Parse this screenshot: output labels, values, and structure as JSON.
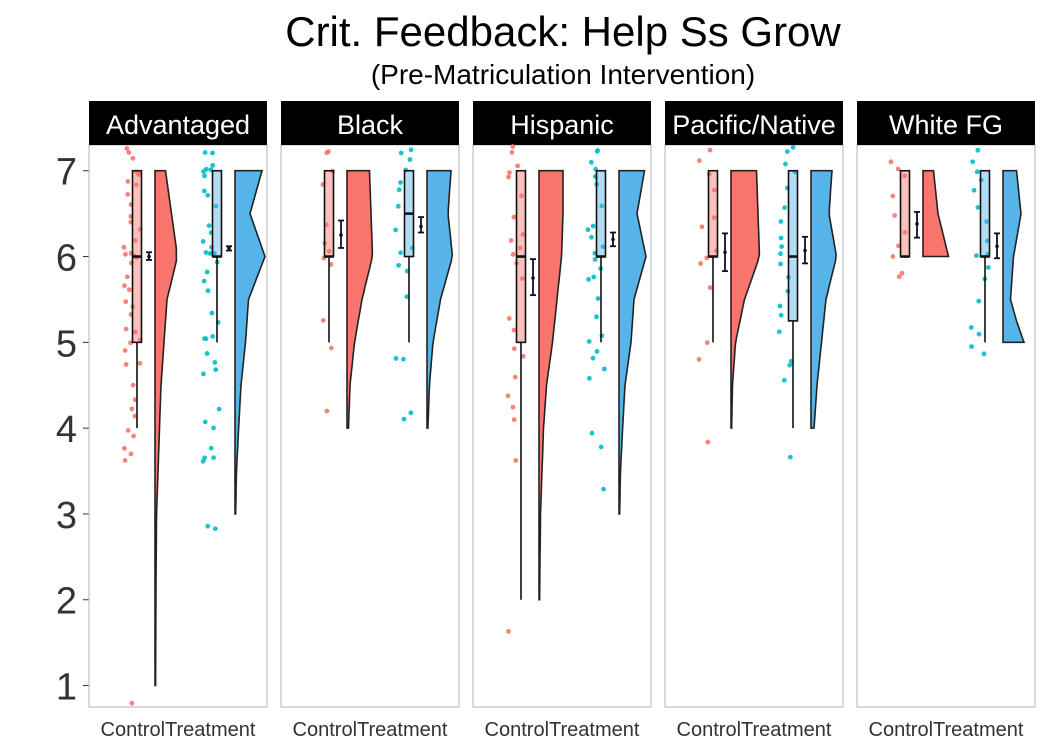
{
  "chart_data": {
    "type": "raincloud",
    "title": "Crit. Feedback: Help Ss Grow",
    "subtitle": "(Pre-Matriculation Intervention)",
    "xlabel": "",
    "ylabel": "",
    "ylim": [
      0.75,
      7.3
    ],
    "yticks": [
      1,
      2,
      3,
      4,
      5,
      6,
      7
    ],
    "categories": [
      "Control",
      "Treatment"
    ],
    "colors": {
      "control_point": "#F8766D",
      "treatment_point": "#00BFC4",
      "control_violin": "#F8766D",
      "treatment_violin": "#56B4E9",
      "strip_bg": "#000000",
      "strip_text": "#FFFFFF",
      "panel_border": "#B3B3B3"
    },
    "panels": [
      {
        "name": "Advantaged",
        "groups": [
          {
            "group": "Control",
            "box": {
              "min": 4,
              "q1": 5,
              "median": 6,
              "q3": 7,
              "max": 7
            },
            "mean": 6.0,
            "ci": [
              5.96,
              6.05
            ],
            "violin": {
              "min": 1,
              "max": 7,
              "density": [
                [
                  1,
                  0.02
                ],
                [
                  2,
                  0.03
                ],
                [
                  3,
                  0.05
                ],
                [
                  4,
                  0.15
                ],
                [
                  4.5,
                  0.2
                ],
                [
                  5,
                  0.3
                ],
                [
                  5.5,
                  0.4
                ],
                [
                  6,
                  0.75
                ],
                [
                  6.5,
                  0.55
                ],
                [
                  7,
                  0.35
                ]
              ]
            },
            "points": [
              0.8,
              3.6,
              3.7,
              3.8,
              3.9,
              4,
              4.1,
              4.2,
              4.3,
              4.5,
              4.7,
              4.8,
              4.9,
              5,
              5,
              5.1,
              5.2,
              5.3,
              5.4,
              5.5,
              5.6,
              5.7,
              5.8,
              5.9,
              6,
              6,
              6,
              6,
              6.1,
              6.2,
              6.3,
              6.4,
              6.5,
              6.6,
              6.7,
              6.8,
              6.9,
              7,
              7,
              7,
              7.1,
              7.2,
              7.25
            ]
          },
          {
            "group": "Treatment",
            "box": {
              "min": 5,
              "q1": 6,
              "median": 6,
              "q3": 7,
              "max": 7
            },
            "mean": 6.1,
            "ci": [
              6.07,
              6.12
            ],
            "violin": {
              "min": 3,
              "max": 7,
              "density": [
                [
                  3,
                  0.02
                ],
                [
                  3.5,
                  0.05
                ],
                [
                  4,
                  0.12
                ],
                [
                  4.5,
                  0.2
                ],
                [
                  5,
                  0.35
                ],
                [
                  5.5,
                  0.45
                ],
                [
                  6,
                  1.0
                ],
                [
                  6.5,
                  0.5
                ],
                [
                  7,
                  0.9
                ]
              ]
            },
            "points": [
              2.85,
              2.9,
              3.6,
              3.65,
              3.7,
              3.8,
              4,
              4.1,
              4.2,
              4.6,
              4.7,
              4.8,
              4.9,
              5,
              5,
              5.1,
              5.2,
              5.3,
              5.6,
              5.7,
              5.8,
              5.9,
              6,
              6,
              6,
              6.1,
              6.2,
              6.3,
              6.4,
              6.6,
              6.7,
              6.8,
              6.9,
              7,
              7,
              7,
              7.1,
              7.2,
              7.25
            ]
          }
        ]
      },
      {
        "name": "Black",
        "groups": [
          {
            "group": "Control",
            "box": {
              "min": 5,
              "q1": 6,
              "median": 6,
              "q3": 7,
              "max": 7
            },
            "mean": 6.25,
            "ci": [
              6.1,
              6.42
            ],
            "violin": {
              "min": 4,
              "max": 7,
              "density": [
                [
                  4,
                  0.05
                ],
                [
                  4.5,
                  0.1
                ],
                [
                  5,
                  0.25
                ],
                [
                  5.5,
                  0.5
                ],
                [
                  6,
                  0.85
                ],
                [
                  6.5,
                  0.8
                ],
                [
                  7,
                  0.75
                ]
              ]
            },
            "points": [
              4.2,
              4.95,
              5.3,
              5.9,
              6,
              6.1,
              6.2,
              6.4,
              6.8,
              7,
              7.2,
              7.25
            ]
          },
          {
            "group": "Treatment",
            "box": {
              "min": 5,
              "q1": 6,
              "median": 6.5,
              "q3": 7,
              "max": 7
            },
            "mean": 6.35,
            "ci": [
              6.28,
              6.46
            ],
            "violin": {
              "min": 4,
              "max": 7,
              "density": [
                [
                  4,
                  0.03
                ],
                [
                  4.5,
                  0.08
                ],
                [
                  5,
                  0.2
                ],
                [
                  5.5,
                  0.45
                ],
                [
                  6,
                  0.85
                ],
                [
                  6.5,
                  0.7
                ],
                [
                  7,
                  0.8
                ]
              ]
            },
            "points": [
              4.1,
              4.2,
              4.8,
              4.85,
              5.5,
              5.8,
              5.9,
              6,
              6.1,
              6.3,
              6.6,
              6.8,
              6.9,
              7,
              7.1,
              7.2,
              7.25
            ]
          }
        ]
      },
      {
        "name": "Hispanic",
        "groups": [
          {
            "group": "Control",
            "box": {
              "min": 2,
              "q1": 5,
              "median": 6,
              "q3": 7,
              "max": 7
            },
            "mean": 5.75,
            "ci": [
              5.55,
              5.97
            ],
            "violin": {
              "min": 2,
              "max": 7,
              "density": [
                [
                  2,
                  0.02
                ],
                [
                  3,
                  0.05
                ],
                [
                  4,
                  0.15
                ],
                [
                  4.5,
                  0.25
                ],
                [
                  5,
                  0.45
                ],
                [
                  5.5,
                  0.6
                ],
                [
                  6,
                  0.75
                ],
                [
                  6.5,
                  0.8
                ],
                [
                  7,
                  0.8
                ]
              ]
            },
            "points": [
              1.6,
              3.6,
              4.1,
              4.2,
              4.4,
              4.6,
              4.8,
              4.9,
              5.1,
              5.3,
              5.7,
              5.9,
              6,
              6.1,
              6.2,
              6.3,
              6.5,
              6.7,
              6.9,
              7,
              7.1,
              7.2,
              7.25
            ]
          },
          {
            "group": "Treatment",
            "box": {
              "min": 5,
              "q1": 6,
              "median": 6,
              "q3": 7,
              "max": 7
            },
            "mean": 6.2,
            "ci": [
              6.12,
              6.28
            ],
            "violin": {
              "min": 3,
              "max": 7,
              "density": [
                [
                  3,
                  0.02
                ],
                [
                  3.5,
                  0.05
                ],
                [
                  4,
                  0.12
                ],
                [
                  4.5,
                  0.2
                ],
                [
                  5,
                  0.4
                ],
                [
                  5.5,
                  0.5
                ],
                [
                  6,
                  0.9
                ],
                [
                  6.5,
                  0.6
                ],
                [
                  7,
                  0.85
                ]
              ]
            },
            "points": [
              3.3,
              3.8,
              3.95,
              4.6,
              4.7,
              4.8,
              4.9,
              5,
              5.1,
              5.3,
              5.5,
              5.7,
              5.8,
              5.9,
              6,
              6,
              6.1,
              6.2,
              6.3,
              6.4,
              6.6,
              6.8,
              6.9,
              7,
              7.1,
              7.2,
              7.25
            ]
          }
        ]
      },
      {
        "name": "Pacific/Native",
        "groups": [
          {
            "group": "Control",
            "box": {
              "min": 5,
              "q1": 6,
              "median": 6,
              "q3": 7,
              "max": 7
            },
            "mean": 6.05,
            "ci": [
              5.83,
              6.27
            ],
            "violin": {
              "min": 4,
              "max": 7,
              "density": [
                [
                  4,
                  0.02
                ],
                [
                  4.5,
                  0.05
                ],
                [
                  5,
                  0.15
                ],
                [
                  5.5,
                  0.45
                ],
                [
                  6,
                  0.95
                ],
                [
                  6.5,
                  0.9
                ],
                [
                  7,
                  0.85
                ]
              ]
            },
            "points": [
              3.8,
              4.8,
              4.95,
              5.6,
              5.9,
              6,
              6.1,
              6.3,
              6.5,
              6.8,
              7,
              7.1,
              7.2
            ]
          },
          {
            "group": "Treatment",
            "box": {
              "min": 4,
              "q1": 5.25,
              "median": 6,
              "q3": 7,
              "max": 7
            },
            "mean": 6.07,
            "ci": [
              5.92,
              6.23
            ],
            "violin": {
              "min": 4,
              "max": 7,
              "density": [
                [
                  4,
                  0.1
                ],
                [
                  4.5,
                  0.2
                ],
                [
                  5,
                  0.35
                ],
                [
                  5.5,
                  0.5
                ],
                [
                  6,
                  0.85
                ],
                [
                  6.5,
                  0.6
                ],
                [
                  7,
                  0.7
                ]
              ]
            },
            "points": [
              3.65,
              4.6,
              4.7,
              4.8,
              5.1,
              5.3,
              5.4,
              5.6,
              5.8,
              5.9,
              6,
              6.1,
              6.2,
              6.4,
              6.6,
              6.8,
              7,
              7.1,
              7.2,
              7.25
            ]
          }
        ]
      },
      {
        "name": "White FG",
        "groups": [
          {
            "group": "Control",
            "box": {
              "min": 6,
              "q1": 6,
              "median": 6,
              "q3": 7,
              "max": 7
            },
            "mean": 6.38,
            "ci": [
              6.22,
              6.52
            ],
            "violin": {
              "min": 6,
              "max": 7,
              "density": [
                [
                  6,
                  0.85
                ],
                [
                  6.5,
                  0.5
                ],
                [
                  7,
                  0.35
                ]
              ]
            },
            "points": [
              5.8,
              5.8,
              6,
              6.1,
              6.3,
              6.5,
              6.7,
              6.9,
              7,
              7.1
            ]
          },
          {
            "group": "Treatment",
            "box": {
              "min": 5,
              "q1": 6,
              "median": 6,
              "q3": 7,
              "max": 7
            },
            "mean": 6.12,
            "ci": [
              5.98,
              6.27
            ],
            "violin": {
              "min": 5,
              "max": 7,
              "density": [
                [
                  5,
                  0.7
                ],
                [
                  5.25,
                  0.45
                ],
                [
                  5.5,
                  0.25
                ],
                [
                  6,
                  0.35
                ],
                [
                  6.5,
                  0.6
                ],
                [
                  7,
                  0.45
                ]
              ]
            },
            "points": [
              4.85,
              4.95,
              5.1,
              5.2,
              5.5,
              5.7,
              5.9,
              6,
              6,
              6.2,
              6.4,
              6.6,
              6.8,
              6.9,
              7,
              7.1,
              7.2
            ]
          }
        ]
      }
    ]
  }
}
